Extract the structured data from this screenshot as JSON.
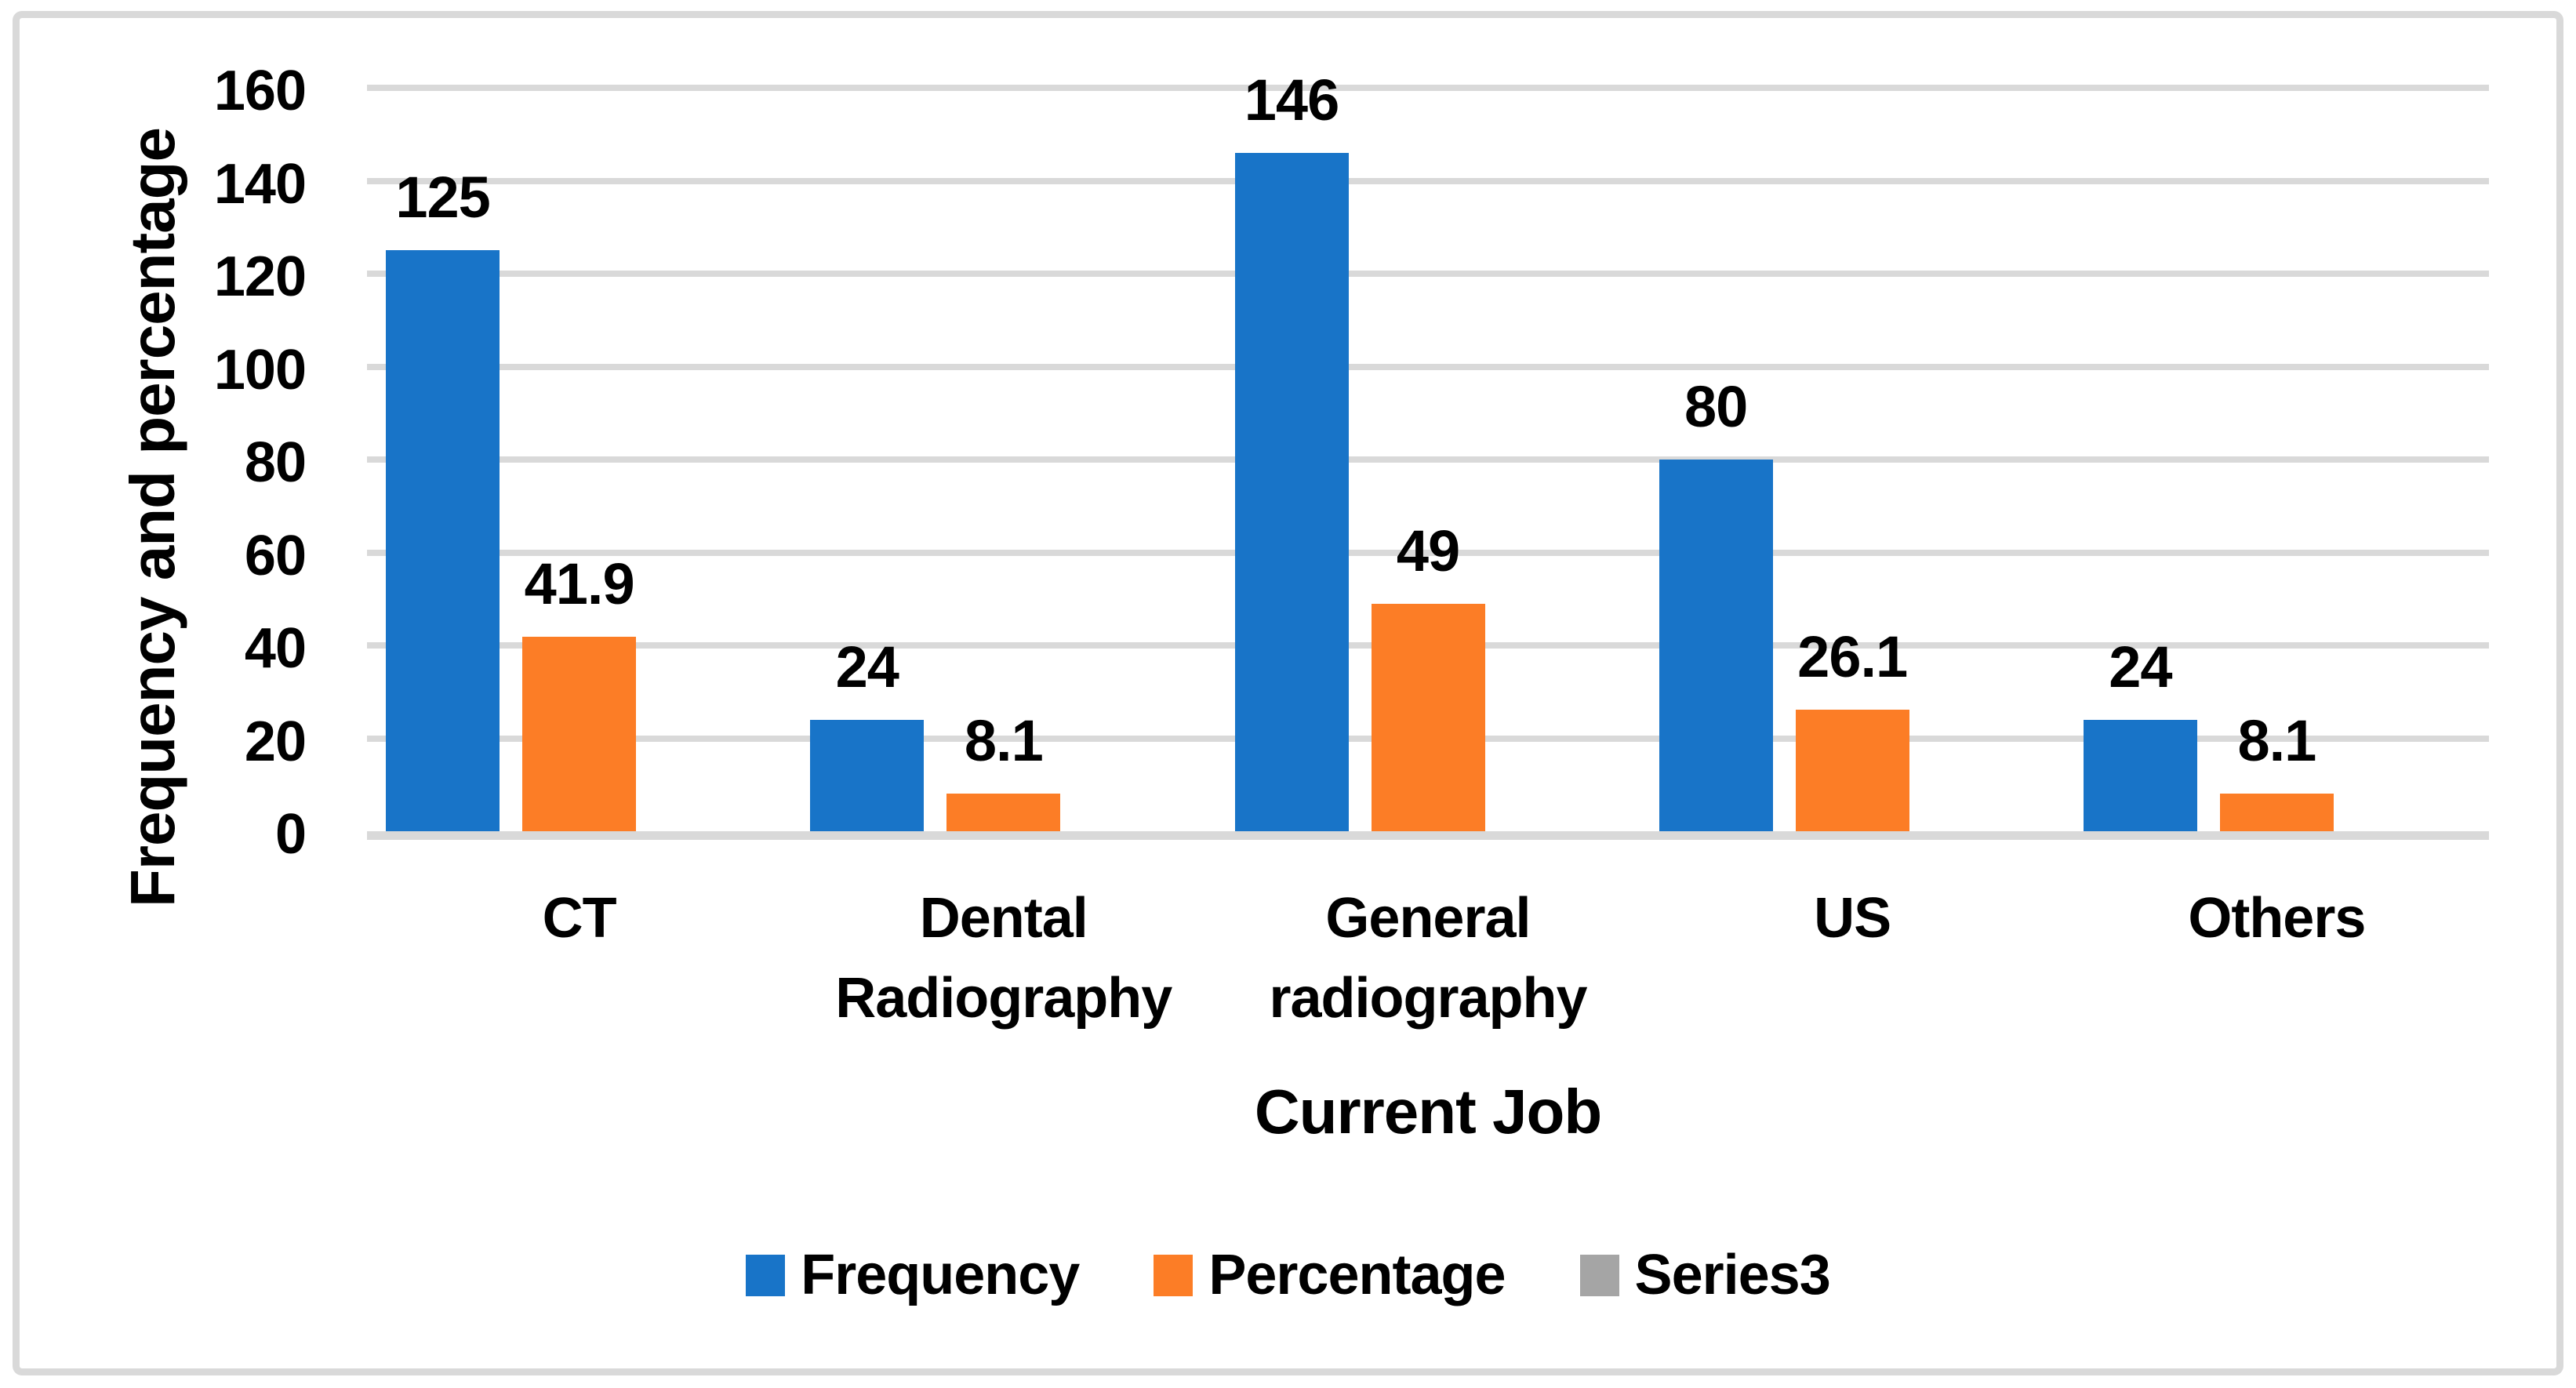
{
  "figure": {
    "background": "#FFFFFF",
    "border_color": "#D9D9D9"
  },
  "chart_data": {
    "type": "bar",
    "title": "",
    "categories": [
      "CT",
      "Dental\nRadiography",
      "General\nradiography",
      "US",
      "Others"
    ],
    "series": [
      {
        "name": "Frequency",
        "color": "#1874C8",
        "values": [
          125,
          24,
          146,
          80,
          24
        ],
        "labels": [
          "125",
          "24",
          "146",
          "80",
          "24"
        ]
      },
      {
        "name": "Percentage",
        "color": "#FC7D26",
        "values": [
          41.9,
          8.1,
          49,
          26.1,
          8.1
        ],
        "labels": [
          "41.9",
          "8.1",
          "49",
          "26.1",
          "8.1"
        ]
      },
      {
        "name": "Series3",
        "color": "#A5A5A5",
        "values": [
          0,
          0,
          0,
          0,
          0
        ],
        "labels": [
          "",
          "",
          "",
          "",
          ""
        ]
      }
    ],
    "xlabel": "Current Job",
    "ylabel": "Frequency and percentage",
    "ylim": [
      0,
      160
    ],
    "yticks": [
      0,
      20,
      40,
      60,
      80,
      100,
      120,
      140,
      160
    ],
    "ytick_labels": [
      "0",
      "20",
      "40",
      "60",
      "80",
      "100",
      "120",
      "140",
      "160"
    ],
    "grid": true,
    "gridline_color": "#D9D9D9",
    "axisline_color": "#D9D9D9",
    "text_color": "#000000",
    "legend_position": "bottom",
    "legend": [
      "Frequency",
      "Percentage",
      "Series3"
    ]
  }
}
